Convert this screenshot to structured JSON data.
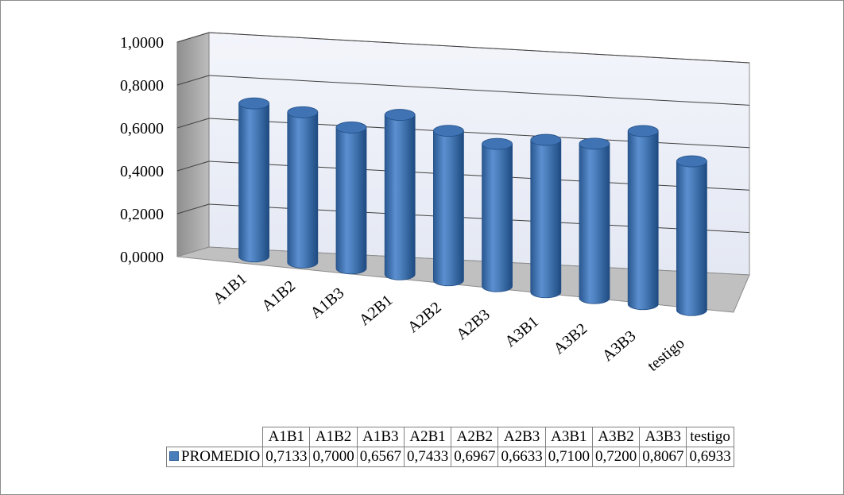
{
  "chart_data": {
    "type": "bar",
    "style": "3d-cylinder",
    "categories": [
      "A1B1",
      "A1B2",
      "A1B3",
      "A2B1",
      "A2B2",
      "A2B3",
      "A3B1",
      "A3B2",
      "A3B3",
      "testigo"
    ],
    "series": [
      {
        "name": "PROMEDIO",
        "values": [
          0.7133,
          0.7,
          0.6567,
          0.7433,
          0.6967,
          0.6633,
          0.71,
          0.72,
          0.8067,
          0.6933
        ],
        "color": "#4a7ebb"
      }
    ],
    "ylim": [
      0,
      1
    ],
    "yticks": [
      "0,0000",
      "0,2000",
      "0,4000",
      "0,6000",
      "0,8000",
      "1,0000"
    ],
    "grid": true,
    "legend": "data-table",
    "table": {
      "values_text": [
        "0,7133",
        "0,7000",
        "0,6567",
        "0,7433",
        "0,6967",
        "0,6633",
        "0,7100",
        "0,7200",
        "0,8067",
        "0,6933"
      ]
    }
  },
  "colors": {
    "bar": "#4a7ebb",
    "bar_dark": "#234f86",
    "back_wall": "#eef1f8",
    "side_wall": "#a6a6a6",
    "floor": "#c0c0c0",
    "gridline": "#404040"
  }
}
